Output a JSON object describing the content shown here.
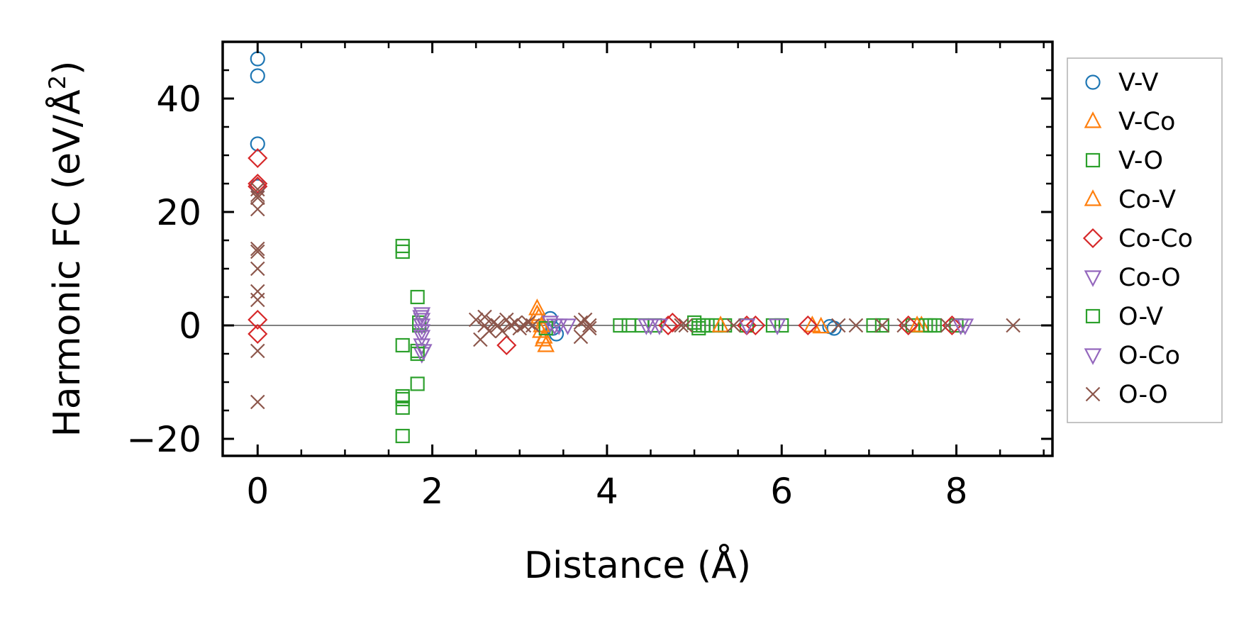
{
  "chart_data": {
    "type": "scatter",
    "title": "",
    "xlabel": "Distance (Å)",
    "ylabel_main": "Harmonic FC (eV/Å",
    "ylabel_sup": "2",
    "ylabel_close": ")",
    "xlim": [
      -0.4,
      9.1
    ],
    "ylim": [
      -23,
      50
    ],
    "xticks": [
      0,
      2,
      4,
      6,
      8
    ],
    "xtick_labels": [
      "0",
      "2",
      "4",
      "6",
      "8"
    ],
    "yticks": [
      -20,
      0,
      20,
      40
    ],
    "ytick_labels": [
      "−20",
      "0",
      "20",
      "40"
    ],
    "reference_line_y": 0,
    "grid": false,
    "legend_position": "outside-right",
    "series": [
      {
        "name": "V-V",
        "marker": "circle",
        "color": "#1f77b4",
        "x": [
          0,
          0,
          0,
          0,
          3.35,
          3.38,
          3.42,
          6.55,
          6.6
        ],
        "y": [
          47,
          44,
          32,
          24.5,
          1.2,
          -0.5,
          -1.5,
          -0.2,
          -0.5
        ]
      },
      {
        "name": "V-Co",
        "marker": "triangle-up",
        "color": "#ff7f0e",
        "x": [
          3.2,
          3.22,
          3.25,
          3.28,
          3.3,
          6.35,
          6.45,
          7.6
        ],
        "y": [
          3,
          1.5,
          0,
          -2,
          -3.5,
          0,
          -0.2,
          0
        ]
      },
      {
        "name": "V-O",
        "marker": "square",
        "color": "#2ca02c",
        "x": [
          1.66,
          1.66,
          1.66,
          1.66,
          1.66,
          1.66,
          1.83,
          1.83,
          1.83,
          1.85,
          1.85,
          4.15,
          4.25,
          4.4,
          4.55,
          5.0,
          5.05,
          5.1,
          5.15,
          5.25,
          5.35,
          5.6,
          5.9,
          6.0,
          7.05,
          7.15,
          7.5,
          7.65,
          7.75,
          8.0
        ],
        "y": [
          14,
          13,
          -3.5,
          -13,
          -14.5,
          -19.5,
          5,
          -4.5,
          -10.3,
          0.5,
          0,
          0,
          0,
          0,
          0,
          0.5,
          -0.5,
          0,
          0,
          0,
          0,
          0,
          0,
          0,
          0,
          0,
          0,
          0,
          0,
          0
        ]
      },
      {
        "name": "Co-V",
        "marker": "triangle-up",
        "color": "#ff7f0e",
        "x": [
          3.2,
          3.24,
          3.27,
          5.3,
          7.55
        ],
        "y": [
          2,
          -1,
          -2.5,
          0,
          0
        ]
      },
      {
        "name": "Co-Co",
        "marker": "diamond",
        "color": "#d62728",
        "x": [
          0,
          0,
          0,
          0,
          0,
          2.85,
          4.7,
          4.75,
          5.6,
          5.7,
          6.3,
          7.45,
          7.95
        ],
        "y": [
          29.5,
          25,
          24.5,
          1,
          -1.5,
          -3.5,
          0,
          0.5,
          0,
          0,
          0,
          0,
          0
        ]
      },
      {
        "name": "Co-O",
        "marker": "triangle-down",
        "color": "#9467bd",
        "x": [
          1.88,
          1.88,
          1.88,
          1.88,
          1.88,
          1.88,
          1.88,
          3.35,
          3.45,
          3.55,
          4.45,
          4.6,
          5.95,
          8.1
        ],
        "y": [
          2,
          1,
          0,
          -1,
          -2,
          -3.5,
          -5,
          0.5,
          0,
          0,
          0,
          0,
          0,
          0
        ]
      },
      {
        "name": "O-V",
        "marker": "square",
        "color": "#2ca02c",
        "x": [
          1.66,
          1.83,
          3.3,
          5.05,
          7.7
        ],
        "y": [
          -12.5,
          -5,
          -0.5,
          0,
          0
        ]
      },
      {
        "name": "O-Co",
        "marker": "triangle-down",
        "color": "#9467bd",
        "x": [
          1.87,
          1.9,
          3.4,
          4.5,
          5.6,
          8.05
        ],
        "y": [
          1.5,
          -4.5,
          0,
          0,
          0,
          0
        ]
      },
      {
        "name": "O-O",
        "marker": "x",
        "color": "#8c564b",
        "x": [
          0,
          0,
          0,
          0,
          0,
          0,
          0,
          0,
          0,
          0,
          0,
          2.5,
          2.55,
          2.6,
          2.6,
          2.65,
          2.7,
          2.75,
          2.8,
          2.85,
          2.9,
          2.95,
          3.0,
          3.05,
          3.1,
          3.15,
          3.7,
          3.75,
          3.8,
          3.8,
          3.7,
          4.85,
          4.9,
          5.45,
          6.65,
          6.85,
          7.15,
          7.4,
          7.9,
          8.65
        ],
        "y": [
          24,
          22.5,
          20.5,
          13.5,
          13,
          10,
          6,
          4.5,
          -4.5,
          -13.5,
          23,
          1,
          -2.5,
          1.5,
          0,
          -1,
          0.5,
          0,
          -1,
          1,
          0,
          0.5,
          -0.5,
          0,
          0.5,
          0,
          0.5,
          1,
          -0.5,
          0,
          -2,
          0,
          0,
          0,
          0,
          0,
          0,
          0,
          0,
          0
        ]
      }
    ]
  }
}
